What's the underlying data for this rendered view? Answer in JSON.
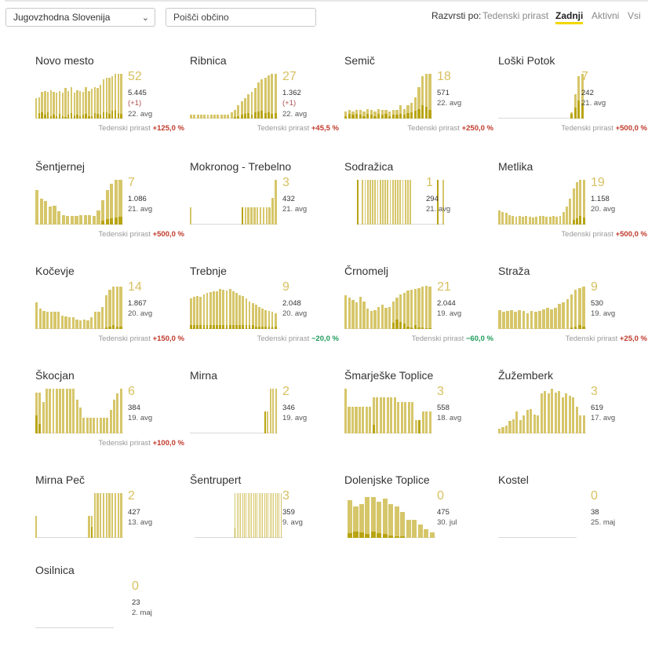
{
  "toolbar": {
    "region": "Jugovzhodna Slovenija",
    "search_placeholder": "Poišči občino",
    "sort_label": "Razvrsti po:",
    "sort_options": [
      "Tedenski prirast",
      "Zadnji",
      "Aktivni",
      "Vsi"
    ],
    "sort_active": "Zadnji"
  },
  "trend_label": "Tedenski prirast",
  "municipalities": [
    {
      "name": "Novo mesto",
      "active": "52",
      "total": "5.445",
      "delta": "(+1)",
      "date": "22. avg",
      "trend": "+125,0 %",
      "dir": "pos",
      "bars": [
        45,
        48,
        60,
        62,
        60,
        64,
        60,
        58,
        62,
        58,
        68,
        62,
        70,
        58,
        64,
        62,
        60,
        70,
        62,
        66,
        70,
        68,
        76,
        88,
        92,
        92,
        95,
        100,
        100,
        100
      ],
      "hi": [
        0,
        12,
        15,
        8,
        14,
        6,
        8,
        5,
        10,
        6,
        4,
        8,
        12,
        7,
        9,
        5,
        8,
        10,
        6,
        5,
        12,
        10,
        8,
        15,
        14,
        10,
        18,
        20,
        12,
        10
      ]
    },
    {
      "name": "Ribnica",
      "active": "27",
      "total": "1.362",
      "delta": "(+1)",
      "date": "22. avg",
      "trend": "+45,5 %",
      "dir": "pos",
      "bars": [
        8,
        8,
        8,
        8,
        8,
        8,
        8,
        8,
        8,
        8,
        8,
        8,
        14,
        20,
        30,
        38,
        45,
        55,
        60,
        68,
        80,
        88,
        92,
        96,
        100,
        100
      ],
      "hi": [
        0,
        0,
        0,
        0,
        0,
        0,
        0,
        0,
        0,
        0,
        0,
        0,
        0,
        3,
        6,
        8,
        10,
        12,
        8,
        14,
        16,
        18,
        12,
        14,
        10,
        12
      ]
    },
    {
      "name": "Semič",
      "active": "18",
      "total": "571",
      "delta": "",
      "date": "22. avg",
      "trend": "+250,0 %",
      "dir": "pos",
      "bars": [
        16,
        20,
        16,
        20,
        20,
        16,
        22,
        20,
        16,
        22,
        20,
        20,
        16,
        20,
        20,
        30,
        22,
        30,
        36,
        48,
        70,
        95,
        100,
        100
      ],
      "hi": [
        6,
        10,
        8,
        10,
        8,
        6,
        10,
        8,
        6,
        10,
        8,
        10,
        6,
        8,
        8,
        10,
        8,
        12,
        14,
        18,
        22,
        30,
        26,
        20
      ]
    },
    {
      "name": "Loški Potok",
      "active": "7",
      "total": "242",
      "delta": "",
      "date": "21. avg",
      "trend": "+500,0 %",
      "dir": "pos",
      "bars": [
        0,
        0,
        0,
        0,
        0,
        0,
        0,
        0,
        0,
        0,
        0,
        0,
        0,
        0,
        0,
        0,
        0,
        0,
        0,
        0,
        0,
        15,
        55,
        95,
        100
      ],
      "hi": [
        0,
        0,
        0,
        0,
        0,
        0,
        0,
        0,
        0,
        0,
        0,
        0,
        0,
        0,
        0,
        0,
        0,
        0,
        0,
        0,
        0,
        10,
        25,
        40,
        35
      ]
    },
    {
      "name": "Šentjernej",
      "active": "7",
      "total": "1.086",
      "delta": "",
      "date": "21. avg",
      "trend": "+500,0 %",
      "dir": "pos",
      "bars": [
        78,
        58,
        52,
        40,
        42,
        30,
        22,
        20,
        20,
        20,
        22,
        22,
        22,
        20,
        32,
        55,
        78,
        92,
        100,
        100
      ],
      "hi": [
        0,
        0,
        0,
        0,
        0,
        0,
        0,
        0,
        0,
        0,
        0,
        0,
        0,
        0,
        0,
        8,
        12,
        14,
        16,
        18
      ]
    },
    {
      "name": "Mokronog - Trebelno",
      "active": "3",
      "total": "432",
      "delta": "",
      "date": "21. avg",
      "trend": "",
      "dir": "pos",
      "bars": [
        38,
        0,
        0,
        0,
        0,
        0,
        0,
        0,
        0,
        0,
        0,
        0,
        0,
        0,
        0,
        0,
        0,
        38,
        38,
        38,
        38,
        38,
        38,
        38,
        38,
        38,
        38,
        60,
        100
      ],
      "hi": [
        0,
        0,
        0,
        0,
        0,
        0,
        0,
        0,
        0,
        0,
        0,
        0,
        0,
        0,
        0,
        0,
        0,
        38,
        0,
        0,
        0,
        0,
        0,
        0,
        0,
        0,
        0,
        0,
        0
      ]
    },
    {
      "name": "Sodražica",
      "active": "1",
      "total": "294",
      "delta": "",
      "date": "21. avg",
      "trend": "",
      "dir": "pos",
      "bars": [
        100,
        0,
        100,
        100,
        100,
        100,
        100,
        100,
        100,
        100,
        100,
        100,
        100,
        100,
        100,
        100,
        100,
        100,
        100,
        100,
        100,
        100,
        0,
        0,
        0,
        0,
        0,
        0,
        0,
        0,
        0,
        0,
        100,
        0,
        100
      ],
      "hi": [
        100,
        0,
        0,
        0,
        0,
        0,
        0,
        0,
        0,
        0,
        0,
        0,
        0,
        0,
        0,
        0,
        0,
        0,
        0,
        0,
        0,
        0,
        0,
        0,
        0,
        0,
        0,
        0,
        0,
        0,
        0,
        0,
        100,
        0,
        0
      ]
    },
    {
      "name": "Metlika",
      "active": "19",
      "total": "1.158",
      "delta": "",
      "date": "20. avg",
      "trend": "+500,0 %",
      "dir": "pos",
      "bars": [
        32,
        28,
        26,
        22,
        20,
        18,
        20,
        18,
        20,
        18,
        16,
        18,
        20,
        20,
        18,
        18,
        20,
        18,
        20,
        28,
        40,
        58,
        80,
        95,
        100,
        100
      ],
      "hi": [
        0,
        0,
        0,
        0,
        0,
        0,
        0,
        0,
        0,
        0,
        0,
        0,
        0,
        0,
        0,
        0,
        0,
        0,
        0,
        0,
        0,
        0,
        10,
        14,
        20,
        16
      ]
    },
    {
      "name": "Kočevje",
      "active": "14",
      "total": "1.867",
      "delta": "",
      "date": "20. avg",
      "trend": "+150,0 %",
      "dir": "pos",
      "bars": [
        60,
        45,
        40,
        38,
        38,
        38,
        38,
        30,
        28,
        26,
        26,
        22,
        20,
        22,
        20,
        26,
        38,
        38,
        50,
        76,
        88,
        95,
        95,
        95
      ],
      "hi": [
        0,
        0,
        0,
        0,
        0,
        0,
        0,
        0,
        0,
        0,
        0,
        0,
        0,
        0,
        0,
        0,
        0,
        0,
        0,
        4,
        6,
        8,
        5,
        6
      ]
    },
    {
      "name": "Trebnje",
      "active": "9",
      "total": "2.048",
      "delta": "",
      "date": "20. avg",
      "trend": "−20,0 %",
      "dir": "neg",
      "bars": [
        68,
        72,
        74,
        72,
        78,
        80,
        82,
        85,
        84,
        90,
        88,
        86,
        90,
        84,
        80,
        75,
        74,
        68,
        62,
        58,
        55,
        50,
        46,
        42,
        40,
        38,
        36
      ],
      "hi": [
        8,
        8,
        8,
        8,
        8,
        8,
        8,
        8,
        8,
        8,
        8,
        8,
        8,
        8,
        8,
        8,
        8,
        8,
        8,
        8,
        6,
        6,
        6,
        6,
        6,
        6,
        6
      ]
    },
    {
      "name": "Črnomelj",
      "active": "21",
      "total": "2.044",
      "delta": "",
      "date": "19. avg",
      "trend": "−60,0 %",
      "dir": "neg",
      "bars": [
        75,
        70,
        65,
        60,
        72,
        62,
        45,
        40,
        42,
        50,
        55,
        48,
        50,
        62,
        70,
        78,
        80,
        86,
        88,
        90,
        92,
        94,
        96,
        94
      ],
      "hi": [
        0,
        0,
        0,
        0,
        0,
        0,
        0,
        0,
        0,
        0,
        0,
        0,
        0,
        14,
        22,
        16,
        12,
        6,
        4,
        8,
        4,
        3,
        2,
        2
      ]
    },
    {
      "name": "Straža",
      "active": "9",
      "total": "530",
      "delta": "",
      "date": "19. avg",
      "trend": "+25,0 %",
      "dir": "pos",
      "bars": [
        42,
        38,
        40,
        42,
        38,
        42,
        40,
        36,
        40,
        38,
        40,
        44,
        48,
        44,
        48,
        56,
        60,
        66,
        78,
        88,
        92,
        94
      ],
      "hi": [
        0,
        0,
        0,
        0,
        0,
        0,
        0,
        0,
        0,
        0,
        0,
        0,
        0,
        0,
        0,
        0,
        0,
        0,
        4,
        6,
        8,
        6
      ]
    },
    {
      "name": "Škocjan",
      "active": "6",
      "total": "384",
      "delta": "",
      "date": "19. avg",
      "trend": "+100,0 %",
      "dir": "pos",
      "bars": [
        92,
        92,
        70,
        100,
        100,
        100,
        100,
        100,
        100,
        100,
        100,
        100,
        75,
        58,
        35,
        35,
        35,
        35,
        35,
        35,
        35,
        35,
        52,
        75,
        90,
        100
      ],
      "hi": [
        40,
        22,
        0,
        0,
        0,
        0,
        0,
        0,
        0,
        0,
        0,
        0,
        0,
        0,
        0,
        0,
        0,
        0,
        0,
        0,
        0,
        0,
        0,
        0,
        0,
        0
      ]
    },
    {
      "name": "Mirna",
      "active": "2",
      "total": "346",
      "delta": "",
      "date": "19. avg",
      "trend": "",
      "dir": "pos",
      "bars": [
        0,
        0,
        0,
        0,
        0,
        0,
        0,
        0,
        0,
        0,
        0,
        0,
        0,
        0,
        0,
        0,
        0,
        0,
        0,
        0,
        0,
        0,
        0,
        0,
        0,
        0,
        0,
        0,
        50,
        50,
        100,
        100,
        100
      ],
      "hi": [
        0,
        0,
        0,
        0,
        0,
        0,
        0,
        0,
        0,
        0,
        0,
        0,
        0,
        0,
        0,
        0,
        0,
        0,
        0,
        0,
        0,
        0,
        0,
        0,
        0,
        0,
        0,
        0,
        50,
        0,
        0,
        0,
        0
      ]
    },
    {
      "name": "Šmarješke Toplice",
      "active": "3",
      "total": "558",
      "delta": "",
      "date": "18. avg",
      "trend": "",
      "dir": "pos",
      "bars": [
        100,
        60,
        60,
        60,
        60,
        60,
        60,
        60,
        80,
        80,
        80,
        80,
        80,
        80,
        80,
        70,
        70,
        70,
        70,
        70,
        30,
        30,
        50,
        50,
        50
      ],
      "hi": [
        0,
        0,
        0,
        0,
        0,
        0,
        0,
        0,
        20,
        0,
        0,
        0,
        0,
        0,
        0,
        0,
        0,
        0,
        0,
        0,
        0,
        30,
        0,
        0,
        0
      ]
    },
    {
      "name": "Žužemberk",
      "active": "3",
      "total": "619",
      "delta": "",
      "date": "17. avg",
      "trend": "",
      "dir": "pos",
      "bars": [
        10,
        15,
        18,
        28,
        32,
        50,
        30,
        40,
        52,
        55,
        42,
        40,
        90,
        95,
        90,
        100,
        92,
        95,
        80,
        90,
        85,
        80,
        60,
        40,
        40
      ],
      "hi": [
        0,
        0,
        0,
        0,
        0,
        0,
        0,
        0,
        0,
        0,
        0,
        0,
        0,
        0,
        0,
        0,
        0,
        0,
        0,
        0,
        0,
        0,
        0,
        0,
        0
      ]
    },
    {
      "name": "Mirna Peč",
      "active": "2",
      "total": "427",
      "delta": "",
      "date": "13. avg",
      "trend": "",
      "dir": "pos",
      "bars": [
        50,
        0,
        0,
        0,
        0,
        0,
        0,
        0,
        0,
        0,
        0,
        0,
        0,
        0,
        0,
        0,
        0,
        0,
        50,
        50,
        100,
        100,
        100,
        100,
        100,
        100,
        100,
        100,
        100,
        100
      ],
      "hi": [
        0,
        0,
        0,
        0,
        0,
        0,
        0,
        0,
        0,
        0,
        0,
        0,
        0,
        0,
        0,
        0,
        0,
        0,
        0,
        25,
        0,
        0,
        0,
        0,
        0,
        0,
        0,
        0,
        0,
        0
      ]
    },
    {
      "name": "Šentrupert",
      "active": "3",
      "total": "359",
      "delta": "",
      "date": "9. avg",
      "trend": "",
      "dir": "pos",
      "bars": [
        0,
        0,
        0,
        0,
        0,
        0,
        0,
        0,
        0,
        0,
        0,
        0,
        0,
        0,
        0,
        0,
        0,
        0,
        0,
        0,
        0,
        0,
        100,
        100,
        100,
        100,
        100,
        100,
        100,
        100,
        100,
        100,
        100,
        100,
        100,
        100,
        100,
        100,
        100,
        100,
        100,
        100,
        100,
        100,
        100,
        100,
        100,
        100
      ],
      "hi": [
        0,
        0,
        0,
        0,
        0,
        0,
        0,
        0,
        0,
        0,
        0,
        0,
        0,
        0,
        0,
        0,
        0,
        0,
        0,
        0,
        0,
        0,
        22,
        0,
        0,
        0,
        0,
        0,
        0,
        0,
        0,
        0,
        0,
        0,
        0,
        0,
        0,
        0,
        0,
        0,
        0,
        0,
        0,
        0,
        0,
        0,
        0,
        0
      ]
    },
    {
      "name": "Dolenjske Toplice",
      "active": "0",
      "total": "475",
      "delta": "",
      "date": "30. jul",
      "trend": "",
      "dir": "pos",
      "bars": [
        85,
        70,
        75,
        92,
        92,
        80,
        88,
        75,
        70,
        58,
        40,
        40,
        30,
        20,
        12
      ],
      "hi": [
        10,
        14,
        12,
        8,
        14,
        10,
        8,
        6,
        4,
        3,
        0,
        0,
        0,
        0,
        0
      ]
    },
    {
      "name": "Kostel",
      "active": "0",
      "total": "38",
      "delta": "",
      "date": "25. maj",
      "trend": "",
      "dir": "pos",
      "bars": [],
      "hi": []
    },
    {
      "name": "Osilnica",
      "active": "0",
      "total": "23",
      "delta": "",
      "date": "2. maj",
      "trend": "",
      "dir": "pos",
      "bars": [],
      "hi": []
    }
  ]
}
